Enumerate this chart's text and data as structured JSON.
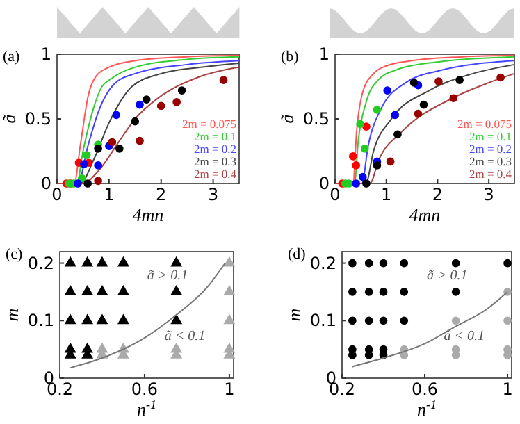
{
  "chart_data": [
    {
      "type": "line",
      "title": "(a)",
      "xlabel": "4mn",
      "ylabel": "ã",
      "xlim": [
        0,
        3.5
      ],
      "ylim": [
        0,
        1
      ],
      "xticks": [
        0,
        1,
        2,
        3
      ],
      "yticks": [
        0,
        0.5,
        1
      ],
      "legend": "bottom right",
      "marker": "circle",
      "series": [
        {
          "name": "2m = 0.075",
          "marker": "none",
          "color": "#ff5555",
          "x": [
            0,
            0.33,
            0.45,
            0.6,
            0.75,
            1,
            1.5,
            2.5,
            3.5
          ],
          "values": [
            0,
            0,
            0.3,
            0.68,
            0.83,
            0.9,
            0.95,
            0.98,
            0.99
          ]
        },
        {
          "name": "2m = 0.1",
          "marker": "none",
          "color": "#33cc33",
          "x": [
            0,
            0.38,
            0.5,
            0.7,
            0.85,
            1.04,
            1.5,
            2.5,
            3.5
          ],
          "values": [
            0,
            0,
            0.25,
            0.58,
            0.74,
            0.81,
            0.9,
            0.96,
            0.98
          ]
        },
        {
          "name": "2m = 0.2",
          "marker": "none",
          "color": "#4444ff",
          "x": [
            0,
            0.4,
            0.6,
            0.8,
            1.1,
            1.5,
            2.5,
            3.5
          ],
          "values": [
            0,
            0,
            0.3,
            0.56,
            0.77,
            0.85,
            0.92,
            0.95
          ]
        },
        {
          "name": "2m = 0.3",
          "marker": "none",
          "color": "#444444",
          "x": [
            0,
            0.45,
            0.7,
            1,
            1.44,
            2,
            2.8,
            3.5
          ],
          "values": [
            0,
            0,
            0.18,
            0.47,
            0.75,
            0.85,
            0.9,
            0.93
          ]
        },
        {
          "name": "2m = 0.4",
          "marker": "none",
          "color": "#aa4444",
          "x": [
            0,
            0.5,
            0.8,
            1.2,
            1.5,
            1.94,
            2.7,
            3.5
          ],
          "values": [
            0,
            0,
            0.1,
            0.33,
            0.5,
            0.66,
            0.82,
            0.9
          ]
        },
        {
          "type": "scatter",
          "color": "#ff0000",
          "x": [
            0.18,
            0.26,
            0.42,
            0.61
          ],
          "values": [
            0,
            0,
            0.16,
            0.16
          ]
        },
        {
          "type": "scatter",
          "color": "#22cc22",
          "x": [
            0.23,
            0.32,
            0.48,
            0.57,
            0.79
          ],
          "values": [
            0,
            0,
            0.04,
            0.22,
            0.3
          ]
        },
        {
          "type": "scatter",
          "color": "#0000ff",
          "x": [
            0.4,
            0.52,
            0.79,
            1,
            1.14,
            1.59
          ],
          "values": [
            0,
            0.15,
            0.14,
            0.29,
            0.53,
            0.61
          ]
        },
        {
          "type": "scatter",
          "color": "#000000",
          "x": [
            0.59,
            0.79,
            1.2,
            1.5,
            1.72,
            2.4
          ],
          "values": [
            0,
            0.27,
            0.27,
            0.48,
            0.65,
            0.72
          ]
        },
        {
          "type": "scatter",
          "color": "#990000",
          "x": [
            0.79,
            1.06,
            1.59,
            2,
            2.3,
            3.2
          ],
          "values": [
            0.02,
            0.32,
            0.33,
            0.6,
            0.63,
            0.8
          ]
        }
      ]
    },
    {
      "type": "line",
      "title": "(b)",
      "xlabel": "4mn",
      "ylabel": "ã",
      "xlim": [
        0,
        3.5
      ],
      "ylim": [
        0,
        1
      ],
      "xticks": [
        0,
        1,
        2,
        3
      ],
      "yticks": [
        0,
        0.5,
        1
      ],
      "legend": "bottom right",
      "marker": "circle",
      "series": [
        {
          "name": "2m = 0.075",
          "marker": "none",
          "color": "#ff5555",
          "x": [
            0,
            0.35,
            0.42,
            0.55,
            0.75,
            1,
            1.5,
            2.5,
            3.5
          ],
          "values": [
            0,
            0,
            0.4,
            0.72,
            0.85,
            0.91,
            0.95,
            0.98,
            0.99
          ]
        },
        {
          "name": "2m = 0.1",
          "marker": "none",
          "color": "#33cc33",
          "x": [
            0,
            0.38,
            0.45,
            0.6,
            0.84,
            1.2,
            2,
            3.5
          ],
          "values": [
            0,
            0,
            0.32,
            0.62,
            0.8,
            0.88,
            0.94,
            0.98
          ]
        },
        {
          "name": "2m = 0.2",
          "marker": "none",
          "color": "#4444ff",
          "x": [
            0,
            0.52,
            0.65,
            0.9,
            1.38,
            2,
            3.5
          ],
          "values": [
            0,
            0,
            0.3,
            0.58,
            0.78,
            0.87,
            0.95
          ]
        },
        {
          "name": "2m = 0.3",
          "marker": "none",
          "color": "#444444",
          "x": [
            0,
            0.6,
            0.75,
            1.1,
            1.84,
            2.6,
            3.5
          ],
          "values": [
            0,
            0,
            0.25,
            0.5,
            0.72,
            0.84,
            0.92
          ]
        },
        {
          "name": "2m = 0.4",
          "marker": "none",
          "color": "#aa4444",
          "x": [
            0,
            0.68,
            0.85,
            1.3,
            2.29,
            3,
            3.5
          ],
          "values": [
            0,
            0,
            0.18,
            0.4,
            0.66,
            0.78,
            0.85
          ]
        },
        {
          "type": "scatter",
          "color": "#ff0000",
          "x": [
            0.14,
            0.35,
            0.41,
            0.61
          ],
          "values": [
            0,
            0.21,
            0.14,
            0.44
          ]
        },
        {
          "type": "scatter",
          "color": "#22cc22",
          "x": [
            0.2,
            0.27,
            0.49,
            0.58,
            0.82
          ],
          "values": [
            0,
            0,
            0.46,
            0.27,
            0.57
          ]
        },
        {
          "type": "scatter",
          "color": "#0000ff",
          "x": [
            0.41,
            0.54,
            0.82,
            1.02,
            1.17,
            1.62
          ],
          "values": [
            0,
            0.05,
            0.17,
            0.72,
            0.53,
            0.76
          ]
        },
        {
          "type": "scatter",
          "color": "#000000",
          "x": [
            0.61,
            0.82,
            1.22,
            1.54,
            1.73,
            2.43
          ],
          "values": [
            0,
            0.14,
            0.38,
            0.78,
            0.61,
            0.8
          ]
        },
        {
          "type": "scatter",
          "color": "#990000",
          "x": [
            1.08,
            1.62,
            2.02,
            2.31,
            3.23
          ],
          "values": [
            0.17,
            0.54,
            0.79,
            0.66,
            0.82
          ]
        }
      ]
    },
    {
      "type": "scatter",
      "title": "(c)",
      "xlabel": "n$^{-1}$",
      "ylabel": "m",
      "xlim": [
        0.2,
        1.02
      ],
      "ylim": [
        0,
        0.22
      ],
      "xticks": [
        0.2,
        0.6,
        1
      ],
      "yticks": [
        0,
        0.1,
        0.2
      ],
      "marker": "triangle",
      "annotations": [
        "ã > 0.1",
        "ã < 0.1"
      ],
      "series": [
        {
          "color": "#000000",
          "x": [
            0.25,
            0.33,
            0.4,
            0.5,
            0.75,
            0.25,
            0.33,
            0.4,
            0.5,
            0.75,
            0.25,
            0.33,
            0.4,
            0.5,
            0.75,
            0.25,
            0.33,
            0.25,
            0.33
          ],
          "values": [
            0.2,
            0.2,
            0.2,
            0.2,
            0.2,
            0.15,
            0.15,
            0.15,
            0.15,
            0.15,
            0.1,
            0.1,
            0.1,
            0.1,
            0.1,
            0.05,
            0.05,
            0.04,
            0.04
          ]
        },
        {
          "color": "#aaaaaa",
          "x": [
            0.4,
            0.5,
            0.75,
            0.4,
            0.5,
            0.75,
            1,
            1,
            1,
            1,
            1
          ],
          "values": [
            0.05,
            0.05,
            0.05,
            0.04,
            0.04,
            0.04,
            0.2,
            0.15,
            0.1,
            0.05,
            0.04
          ]
        },
        {
          "type": "line",
          "marker": "none",
          "color": "#777777",
          "x": [
            0.25,
            0.4,
            0.6,
            0.75,
            0.9,
            0.98
          ],
          "values": [
            0.018,
            0.035,
            0.07,
            0.11,
            0.16,
            0.2
          ]
        }
      ]
    },
    {
      "type": "scatter",
      "title": "(d)",
      "xlabel": "n$^{-1}$",
      "ylabel": "m",
      "xlim": [
        0.2,
        1.02
      ],
      "ylim": [
        0,
        0.22
      ],
      "xticks": [
        0.2,
        0.6,
        1
      ],
      "yticks": [
        0,
        0.1,
        0.2
      ],
      "marker": "circle",
      "annotations": [
        "ã > 0.1",
        "ã < 0.1"
      ],
      "series": [
        {
          "color": "#000000",
          "x": [
            0.25,
            0.33,
            0.4,
            0.5,
            0.75,
            1,
            0.25,
            0.33,
            0.4,
            0.5,
            0.75,
            0.25,
            0.33,
            0.4,
            0.5,
            0.25,
            0.33,
            0.4,
            0.25,
            0.33,
            0.4
          ],
          "values": [
            0.2,
            0.2,
            0.2,
            0.2,
            0.2,
            0.2,
            0.15,
            0.15,
            0.15,
            0.15,
            0.15,
            0.1,
            0.1,
            0.1,
            0.1,
            0.05,
            0.05,
            0.05,
            0.04,
            0.04,
            0.04
          ]
        },
        {
          "color": "#aaaaaa",
          "x": [
            0.5,
            0.5,
            0.75,
            0.75,
            0.75,
            1,
            1,
            1,
            1
          ],
          "values": [
            0.05,
            0.04,
            0.1,
            0.05,
            0.04,
            0.15,
            0.1,
            0.05,
            0.04
          ]
        },
        {
          "type": "line",
          "marker": "none",
          "color": "#777777",
          "x": [
            0.25,
            0.4,
            0.6,
            0.75,
            0.9,
            1
          ],
          "values": [
            0.02,
            0.035,
            0.06,
            0.09,
            0.12,
            0.15
          ]
        }
      ]
    }
  ]
}
